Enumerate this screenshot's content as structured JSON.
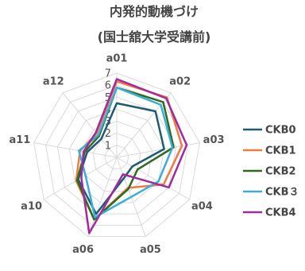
{
  "chart_data": {
    "type": "radar",
    "title": "内発的動機づけ",
    "subtitle": "(国士舘大学受講前)",
    "categories": [
      "a01",
      "a02",
      "a03",
      "a04",
      "a05",
      "a06",
      "a10",
      "a11",
      "a12"
    ],
    "ticks": [
      "1",
      "2",
      "3",
      "4",
      "5",
      "6",
      "7"
    ],
    "rlim": [
      0,
      7
    ],
    "legend_position": "right",
    "series": [
      {
        "name": "CKB0",
        "color": "#1f5973",
        "values": [
          4.5,
          5.0,
          4.0,
          1.5,
          1.8,
          5.0,
          3.7,
          2.5,
          2.0
        ]
      },
      {
        "name": "CKB1",
        "color": "#f07b3f",
        "values": [
          6.3,
          6.5,
          5.5,
          4.5,
          2.7,
          5.5,
          3.9,
          3.1,
          2.6
        ]
      },
      {
        "name": "CKB2",
        "color": "#2e6b1e",
        "values": [
          5.8,
          6.0,
          4.8,
          2.0,
          2.8,
          5.5,
          3.8,
          2.7,
          2.3
        ]
      },
      {
        "name": "CKB３",
        "color": "#3aaed8",
        "values": [
          5.8,
          5.7,
          4.7,
          4.0,
          3.5,
          5.3,
          3.0,
          3.2,
          2.4
        ]
      },
      {
        "name": "CKB4",
        "color": "#a02aa0",
        "values": [
          6.5,
          6.4,
          5.9,
          5.0,
          1.5,
          6.7,
          3.4,
          2.8,
          2.7
        ]
      }
    ]
  }
}
